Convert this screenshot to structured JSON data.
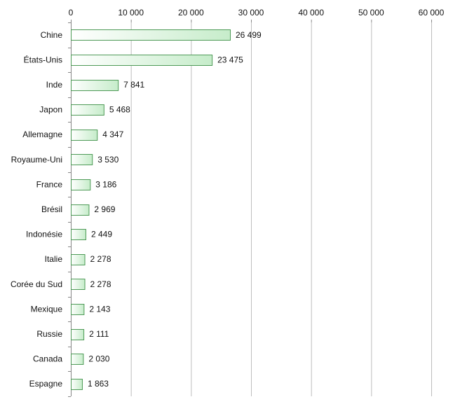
{
  "chart_data": {
    "type": "bar",
    "orientation": "horizontal",
    "categories": [
      "Chine",
      "États-Unis",
      "Inde",
      "Japon",
      "Allemagne",
      "Royaume-Uni",
      "France",
      "Brésil",
      "Indonésie",
      "Italie",
      "Corée du Sud",
      "Mexique",
      "Russie",
      "Canada",
      "Espagne"
    ],
    "values": [
      26499,
      23475,
      7841,
      5468,
      4347,
      3530,
      3186,
      2969,
      2449,
      2278,
      2278,
      2143,
      2111,
      2030,
      1863
    ],
    "value_labels": [
      "26 499",
      "23 475",
      "7 841",
      "5 468",
      "4 347",
      "3 530",
      "3 186",
      "2 969",
      "2 449",
      "2 278",
      "2 278",
      "2 143",
      "2 111",
      "2 030",
      "1 863"
    ],
    "x_ticks": [
      0,
      10000,
      20000,
      30000,
      40000,
      50000,
      60000
    ],
    "x_tick_labels": [
      "0",
      "10 000",
      "20 000",
      "30 000",
      "40 000",
      "50 000",
      "60 000"
    ],
    "xlim": [
      0,
      60000
    ],
    "x_axis_position": "top",
    "grid": true,
    "legend": "none",
    "title": "",
    "xlabel": "",
    "ylabel": "",
    "colors": {
      "bar_gradient_start": "#ffffff",
      "bar_gradient_end": "#c6ecca",
      "bar_stroke": "#4e9a57",
      "grid": "#bdbdbd",
      "axis": "#888888",
      "text": "#111111"
    }
  }
}
